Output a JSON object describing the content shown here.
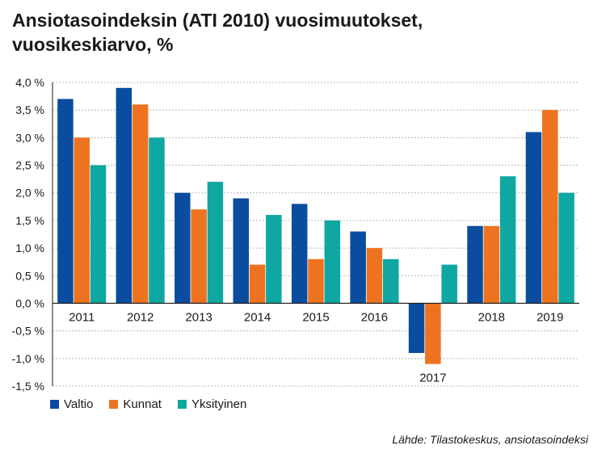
{
  "title_lines": [
    "Ansiotasoindeksin (ATI 2010) vuosimuutokset,",
    "vuosikeskiarvo, %"
  ],
  "source": "Lähde: Tilastokeskus, ansiotasoindeksi",
  "colors": {
    "Valtio": "#0a4c9f",
    "Kunnat": "#ee7320",
    "Yksityinen": "#0fa7a2",
    "axis": "#1a1a1a",
    "grid": "#b8b8b8"
  },
  "chart_data": {
    "type": "bar",
    "categories": [
      "2011",
      "2012",
      "2013",
      "2014",
      "2015",
      "2016",
      "2017",
      "2018",
      "2019"
    ],
    "series": [
      {
        "name": "Valtio",
        "values": [
          3.7,
          3.9,
          2.0,
          1.9,
          1.8,
          1.3,
          -0.9,
          1.4,
          3.1
        ]
      },
      {
        "name": "Kunnat",
        "values": [
          3.0,
          3.6,
          1.7,
          0.7,
          0.8,
          1.0,
          -1.1,
          1.4,
          3.5
        ]
      },
      {
        "name": "Yksityinen",
        "values": [
          2.5,
          3.0,
          2.2,
          1.6,
          1.5,
          0.8,
          0.7,
          2.3,
          2.0
        ]
      }
    ],
    "ylim": [
      -1.5,
      4.0
    ],
    "yticks": [
      4.0,
      3.5,
      3.0,
      2.5,
      2.0,
      1.5,
      1.0,
      0.5,
      0.0,
      -0.5,
      -1.0,
      -1.5
    ],
    "ytick_labels": [
      "4,0 %",
      "3,5 %",
      "3,0 %",
      "2,5 %",
      "2,0 %",
      "1,5 %",
      "1,0 %",
      "0,5 %",
      "0,0 %",
      "-0,5 %",
      "-1,0 %",
      "-1,5 %"
    ],
    "grid": "horizontal dashed",
    "legend": "bottom-left"
  }
}
